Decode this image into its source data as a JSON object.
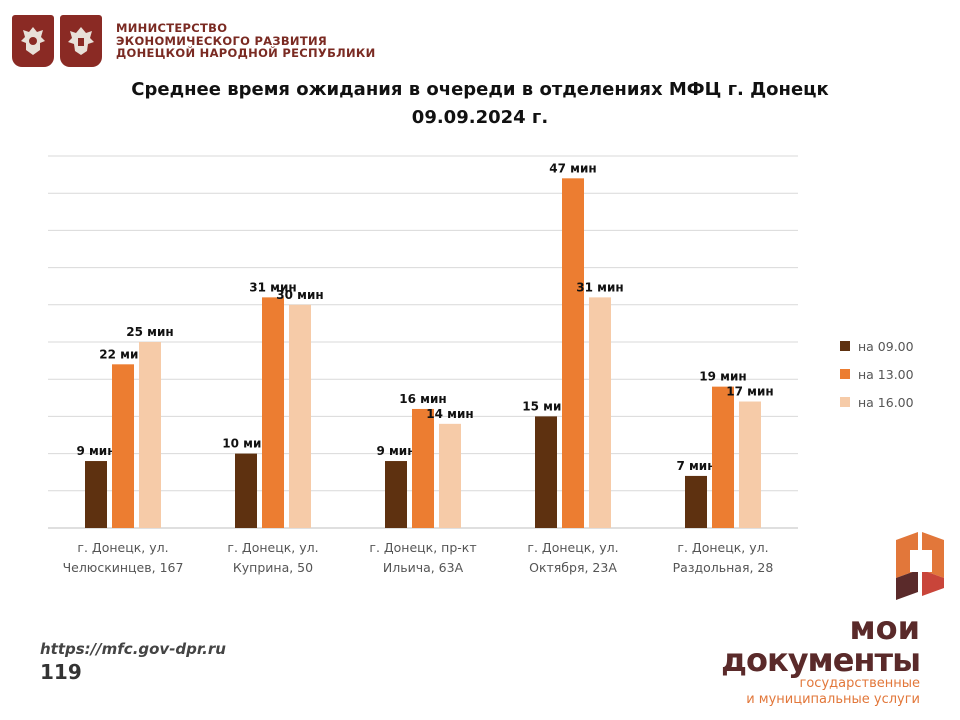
{
  "header": {
    "ministry_lines": [
      "МИНИСТЕРСТВО",
      "ЭКОНОМИЧЕСКОГО РАЗВИТИЯ",
      "ДОНЕЦКОЙ НАРОДНОЙ РЕСПУБЛИКИ"
    ]
  },
  "colors": {
    "series": [
      "#5e3110",
      "#ec7d31",
      "#f6cba8"
    ],
    "grid": "#d9d9d9",
    "axis": "#bfbfbf",
    "brand_orange": "#e2773a",
    "brand_dark": "#5a2a2a",
    "ministry": "#7a2a22"
  },
  "chart_data": {
    "type": "bar",
    "title_line1": "Среднее время ожидания в очереди в отделениях МФЦ г. Донецк",
    "title_line2": "09.09.2024 г.",
    "categories": [
      [
        "г. Донецк, ул.",
        "Челюскинцев, 167"
      ],
      [
        "г. Донецк, ул.",
        "Куприна, 50"
      ],
      [
        "г. Донецк, пр-кт",
        "Ильича, 63А"
      ],
      [
        "г. Донецк, ул.",
        "Октября, 23А"
      ],
      [
        "г. Донецк, ул.",
        "Раздольная, 28"
      ]
    ],
    "series": [
      {
        "name": "на 09.00",
        "values": [
          9,
          10,
          9,
          15,
          7
        ],
        "labels": [
          "9 мин",
          "10 мин",
          "9 мин",
          "15 мин",
          "7 мин"
        ]
      },
      {
        "name": "на 13.00",
        "values": [
          22,
          31,
          16,
          47,
          19
        ],
        "labels": [
          "22 мин",
          "31 мин",
          "16 мин",
          "47 мин",
          "19 мин"
        ]
      },
      {
        "name": "на 16.00",
        "values": [
          25,
          30,
          14,
          31,
          17
        ],
        "labels": [
          "25 мин",
          "30 мин",
          "14 мин",
          "31 мин",
          "17 мин"
        ]
      }
    ],
    "ylim": [
      0,
      50
    ],
    "grid": true,
    "legend_position": "right"
  },
  "footer": {
    "url": "https://mfc.gov-dpr.ru",
    "page": "119"
  },
  "brand": {
    "name_line1": "мои",
    "name_line2": "документы",
    "sub_line1": "государственные",
    "sub_line2": "и муниципальные услуги"
  }
}
